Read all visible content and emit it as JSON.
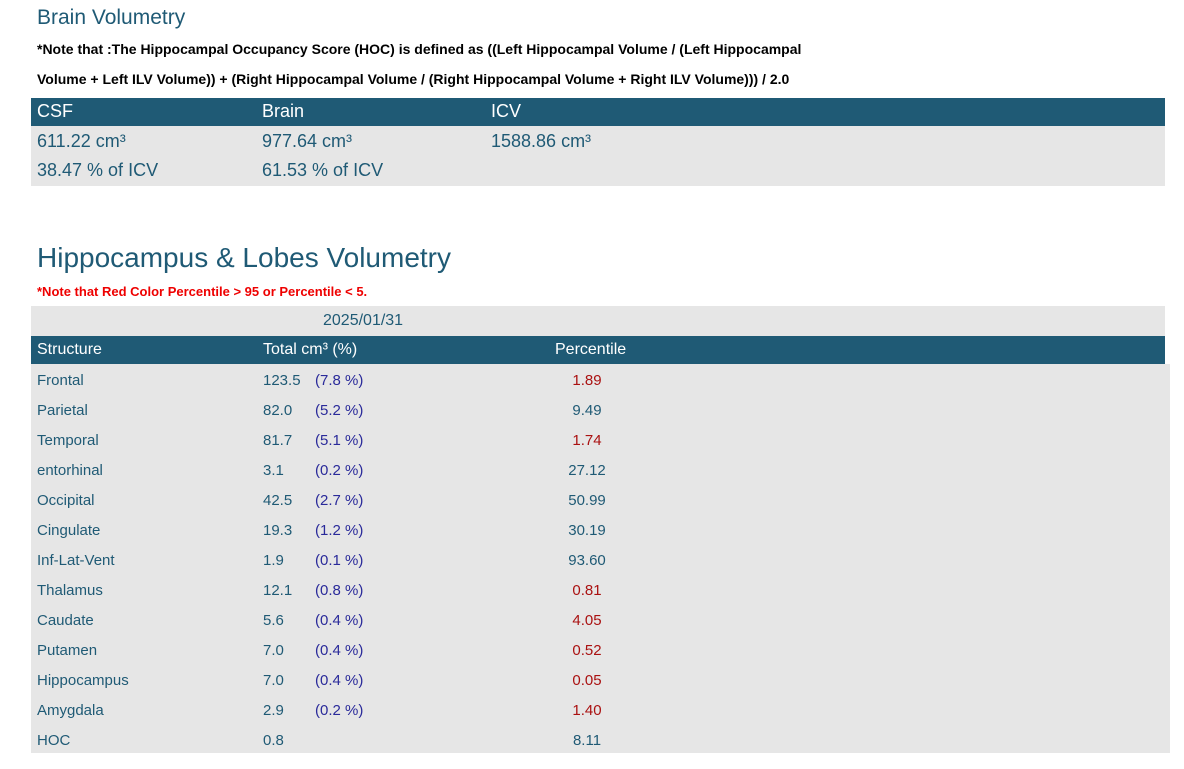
{
  "brain_volumetry": {
    "title": "Brain Volumetry",
    "note_line1": "*Note that :The Hippocampal Occupancy Score (HOC) is defined as ((Left Hippocampal Volume / (Left Hippocampal",
    "note_line2": "Volume + Left ILV Volume)) + (Right Hippocampal Volume / (Right Hippocampal Volume + Right ILV Volume))) / 2.0",
    "headers": [
      "CSF",
      "Brain",
      "ICV"
    ],
    "volumes": [
      "611.22 cm³",
      "977.64 cm³",
      "1588.86 cm³"
    ],
    "percents": [
      "38.47 % of ICV",
      "61.53 % of ICV"
    ]
  },
  "lobes": {
    "title": "Hippocampus & Lobes Volumetry",
    "note": "*Note that Red Color Percentile > 95 or Percentile < 5.",
    "date": "2025/01/31",
    "headers": [
      "Structure",
      "Total cm³ (%)",
      "Percentile"
    ],
    "rows": [
      {
        "structure": "Frontal",
        "total": "123.5",
        "pct": "(7.8 %)",
        "percentile": "1.89",
        "flag": true
      },
      {
        "structure": "Parietal",
        "total": "82.0",
        "pct": "(5.2 %)",
        "percentile": "9.49",
        "flag": false
      },
      {
        "structure": "Temporal",
        "total": "81.7",
        "pct": "(5.1 %)",
        "percentile": "1.74",
        "flag": true
      },
      {
        "structure": "entorhinal",
        "total": "3.1",
        "pct": "(0.2 %)",
        "percentile": "27.12",
        "flag": false
      },
      {
        "structure": "Occipital",
        "total": "42.5",
        "pct": "(2.7 %)",
        "percentile": "50.99",
        "flag": false
      },
      {
        "structure": "Cingulate",
        "total": "19.3",
        "pct": "(1.2 %)",
        "percentile": "30.19",
        "flag": false
      },
      {
        "structure": "Inf-Lat-Vent",
        "total": "1.9",
        "pct": "(0.1 %)",
        "percentile": "93.60",
        "flag": false
      },
      {
        "structure": "Thalamus",
        "total": "12.1",
        "pct": "(0.8 %)",
        "percentile": "0.81",
        "flag": true
      },
      {
        "structure": "Caudate",
        "total": "5.6",
        "pct": "(0.4 %)",
        "percentile": "4.05",
        "flag": true
      },
      {
        "structure": "Putamen",
        "total": "7.0",
        "pct": "(0.4 %)",
        "percentile": "0.52",
        "flag": true
      },
      {
        "structure": "Hippocampus",
        "total": "7.0",
        "pct": "(0.4 %)",
        "percentile": "0.05",
        "flag": true
      },
      {
        "structure": "Amygdala",
        "total": "2.9",
        "pct": "(0.2 %)",
        "percentile": "1.40",
        "flag": true
      },
      {
        "structure": "HOC",
        "total": "0.8",
        "pct": "",
        "percentile": "8.11",
        "flag": false
      }
    ]
  },
  "colors": {
    "header_bg": "#1f5a75",
    "flag_red": "#aa1111",
    "normal_text": "#1f5a75",
    "pct_text": "#2a2a9a",
    "row_bg": "#e6e6e6"
  }
}
